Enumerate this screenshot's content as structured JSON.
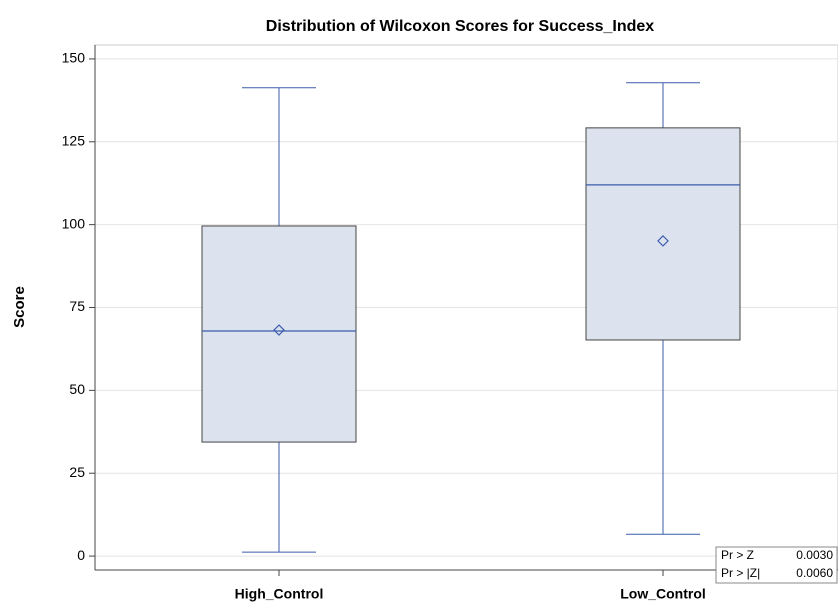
{
  "chart_data": {
    "type": "box",
    "title": "Distribution of Wilcoxon Scores for Success_Index",
    "y_label": "Score",
    "categories": [
      "High_Control",
      "Low_Control"
    ],
    "min": [
      1.2,
      6.6
    ],
    "q1": [
      34.4,
      65.2
    ],
    "median": [
      67.9,
      112
    ],
    "q3": [
      99.6,
      129.2
    ],
    "max": [
      141.3,
      142.8
    ],
    "mean": [
      68.2,
      95.1
    ],
    "color": "#3b5bab",
    "box_fill": "#dde3ee",
    "ylim": [
      -4.2,
      154.2
    ],
    "yticks": [
      0,
      25,
      50,
      75,
      100,
      125,
      150
    ],
    "grid": true,
    "inset": {
      "rows": [
        [
          "Pr > Z",
          "0.0030"
        ],
        [
          "Pr > |Z|",
          "0.0060"
        ]
      ]
    }
  }
}
